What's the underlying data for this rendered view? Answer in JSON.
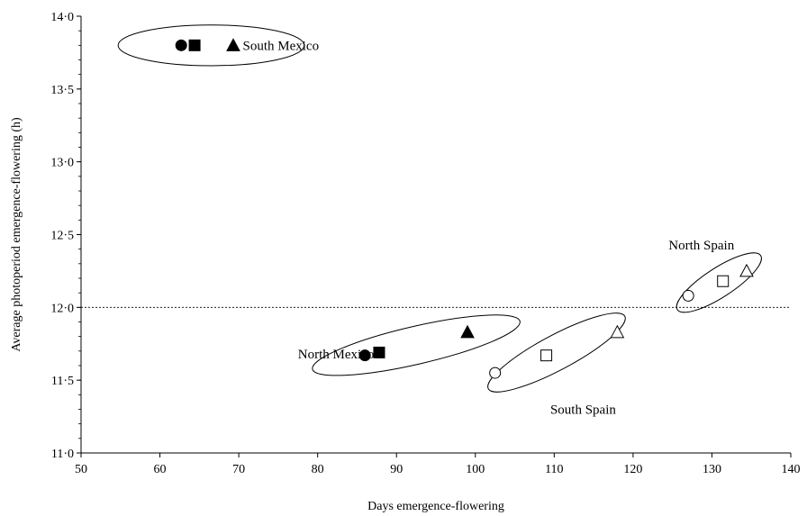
{
  "chart_data": {
    "type": "scatter",
    "title": "",
    "xlabel": "Days emergence-flowering",
    "ylabel": "Average photoperiod emergence-flowering (h)",
    "xlim": [
      50,
      140
    ],
    "ylim": [
      11.0,
      14.0
    ],
    "x_ticks": [
      "50",
      "60",
      "70",
      "80",
      "90",
      "100",
      "110",
      "120",
      "130",
      "140"
    ],
    "y_ticks": [
      "11·0",
      "11·5",
      "12·0",
      "12·5",
      "13·0",
      "13·5",
      "14·0"
    ],
    "reference_line_y": 12.0,
    "grid": false,
    "legend": "none",
    "groups": [
      {
        "label": "South Mexico",
        "label_at": [
          70.5,
          13.8
        ],
        "ellipse": {
          "cx": 66.5,
          "cy": 13.8,
          "rx_days": 11.8,
          "ry_h": 0.14,
          "angle_deg": 0
        },
        "points": [
          {
            "marker": "circle",
            "filled": true,
            "x": 62.7,
            "y": 13.8
          },
          {
            "marker": "square",
            "filled": true,
            "x": 64.4,
            "y": 13.8
          },
          {
            "marker": "triangle",
            "filled": true,
            "x": 69.3,
            "y": 13.8
          }
        ]
      },
      {
        "label": "North Mexico",
        "label_at": [
          77.5,
          11.68
        ],
        "ellipse": {
          "cx": 92.5,
          "cy": 11.74,
          "rx_days": 13.5,
          "ry_h": 0.13,
          "angle_deg": -13
        },
        "points": [
          {
            "marker": "circle",
            "filled": true,
            "x": 86.0,
            "y": 11.67
          },
          {
            "marker": "square",
            "filled": true,
            "x": 87.8,
            "y": 11.69
          },
          {
            "marker": "triangle",
            "filled": true,
            "x": 99.0,
            "y": 11.83
          }
        ]
      },
      {
        "label": "South Spain",
        "label_at": [
          109.5,
          11.3
        ],
        "ellipse": {
          "cx": 110.3,
          "cy": 11.69,
          "rx_days": 9.8,
          "ry_h": 0.12,
          "angle_deg": -28
        },
        "points": [
          {
            "marker": "circle",
            "filled": false,
            "x": 102.5,
            "y": 11.55
          },
          {
            "marker": "square",
            "filled": false,
            "x": 109.0,
            "y": 11.67
          },
          {
            "marker": "triangle",
            "filled": false,
            "x": 118.0,
            "y": 11.83
          }
        ]
      },
      {
        "label": "North Spain",
        "label_at": [
          124.5,
          12.43
        ],
        "ellipse": {
          "cx": 130.9,
          "cy": 12.17,
          "rx_days": 6.3,
          "ry_h": 0.1,
          "angle_deg": -33
        },
        "points": [
          {
            "marker": "circle",
            "filled": false,
            "x": 127.0,
            "y": 12.08
          },
          {
            "marker": "square",
            "filled": false,
            "x": 131.4,
            "y": 12.18
          },
          {
            "marker": "triangle",
            "filled": false,
            "x": 134.4,
            "y": 12.25
          }
        ]
      }
    ]
  }
}
